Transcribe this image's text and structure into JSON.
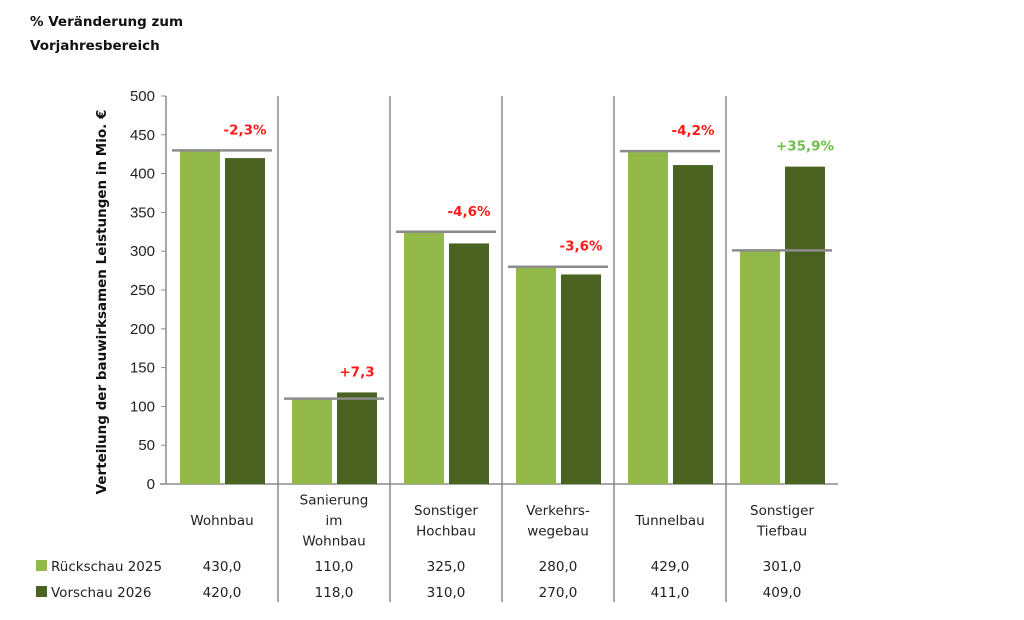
{
  "title_lines": [
    "% Veränderung zum",
    "Vorjahresbereich"
  ],
  "chart_data": {
    "type": "bar",
    "title": "% Veränderung zum Vorjahresbereich",
    "xlabel": "",
    "ylabel": "Verteilung der bauwirksamen Leistungen in Mio. €",
    "ylim": [
      0,
      500
    ],
    "yticks": [
      0,
      50,
      100,
      150,
      200,
      250,
      300,
      350,
      400,
      450,
      500
    ],
    "categories": [
      [
        "Wohnbau"
      ],
      [
        "Sanierung",
        "im",
        "Wohnbau"
      ],
      [
        "Sonstiger",
        "Hochbau"
      ],
      [
        "Verkehrs-",
        "wegebau"
      ],
      [
        "Tunnelbau"
      ],
      [
        "Sonstiger",
        "Tiefbau"
      ]
    ],
    "series": [
      {
        "name": "Rückschau 2025",
        "color": "#92b84a",
        "values": [
          430,
          110,
          325,
          280,
          429,
          301
        ],
        "labels": [
          "430,0",
          "110,0",
          "325,0",
          "280,0",
          "429,0",
          "301,0"
        ]
      },
      {
        "name": "Vorschau 2026",
        "color": "#4a6320",
        "values": [
          420,
          118,
          310,
          270,
          411,
          409
        ],
        "labels": [
          "420,0",
          "118,0",
          "310,0",
          "270,0",
          "411,0",
          "409,0"
        ]
      }
    ],
    "changes": [
      {
        "text": "-2,3%",
        "color": "#ff1a1a"
      },
      {
        "text": "+7,3",
        "color": "#ff1a1a"
      },
      {
        "text": "-4,6%",
        "color": "#ff1a1a"
      },
      {
        "text": "-3,6%",
        "color": "#ff1a1a"
      },
      {
        "text": "-4,2%",
        "color": "#ff1a1a"
      },
      {
        "text": "+35,9%",
        "color": "#6cc04a"
      }
    ],
    "reference_color": "#8c8c8c",
    "grid": false,
    "legend_placement": "bottom-left data table"
  }
}
